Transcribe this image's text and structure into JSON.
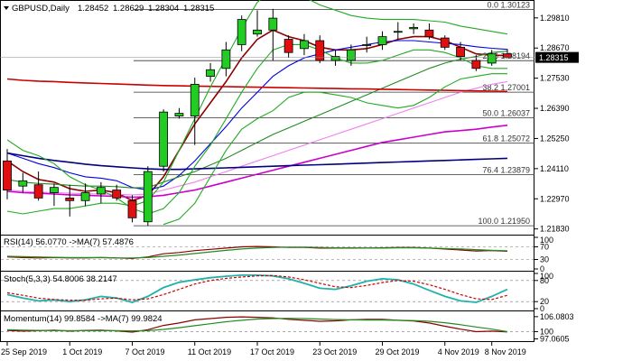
{
  "chart_data": [
    {
      "type": "candlestick",
      "title": "GBPUSD,Daily",
      "ohlc_header": [
        "1.28452",
        "1.28629",
        "1.28304",
        "1.28315"
      ],
      "ylim": [
        1.2175,
        1.3035
      ],
      "y_ticks": [
        "1.29810",
        "1.28670",
        "1.27530",
        "1.26390",
        "1.25250",
        "1.24110",
        "1.22970",
        "1.21830"
      ],
      "y_tick_values": [
        1.2981,
        1.2867,
        1.2753,
        1.2639,
        1.2525,
        1.2411,
        1.2297,
        1.2183
      ],
      "current_price": "1.28315",
      "x_ticks": [
        "25 Sep 2019",
        "1 Oct 2019",
        "7 Oct 2019",
        "11 Oct 2019",
        "17 Oct 2019",
        "23 Oct 2019",
        "29 Oct 2019",
        "4 Nov 2019",
        "8 Nov 2019"
      ],
      "x_tick_bars": [
        0,
        4,
        8,
        12,
        16,
        20,
        24,
        28,
        31
      ],
      "candles": [
        {
          "o": 1.244,
          "h": 1.2485,
          "l": 1.2295,
          "c": 1.233
        },
        {
          "o": 1.2345,
          "h": 1.2395,
          "l": 1.232,
          "c": 1.2365
        },
        {
          "o": 1.235,
          "h": 1.24,
          "l": 1.229,
          "c": 1.23
        },
        {
          "o": 1.232,
          "h": 1.2355,
          "l": 1.227,
          "c": 1.234
        },
        {
          "o": 1.23,
          "h": 1.235,
          "l": 1.223,
          "c": 1.229
        },
        {
          "o": 1.229,
          "h": 1.2355,
          "l": 1.227,
          "c": 1.232
        },
        {
          "o": 1.2315,
          "h": 1.236,
          "l": 1.228,
          "c": 1.234
        },
        {
          "o": 1.233,
          "h": 1.235,
          "l": 1.229,
          "c": 1.23
        },
        {
          "o": 1.229,
          "h": 1.231,
          "l": 1.2208,
          "c": 1.2225
        },
        {
          "o": 1.221,
          "h": 1.242,
          "l": 1.2195,
          "c": 1.24
        },
        {
          "o": 1.242,
          "h": 1.2635,
          "l": 1.24,
          "c": 1.2625
        },
        {
          "o": 1.261,
          "h": 1.264,
          "l": 1.26,
          "c": 1.262
        },
        {
          "o": 1.261,
          "h": 1.2755,
          "l": 1.25,
          "c": 1.273
        },
        {
          "o": 1.276,
          "h": 1.281,
          "l": 1.274,
          "c": 1.2785
        },
        {
          "o": 1.279,
          "h": 1.289,
          "l": 1.276,
          "c": 1.286
        },
        {
          "o": 1.288,
          "h": 1.299,
          "l": 1.2855,
          "c": 1.2975
        },
        {
          "o": 1.292,
          "h": 1.301,
          "l": 1.291,
          "c": 1.2935
        },
        {
          "o": 1.2935,
          "h": 1.3015,
          "l": 1.282,
          "c": 1.298
        },
        {
          "o": 1.29,
          "h": 1.2915,
          "l": 1.283,
          "c": 1.285
        },
        {
          "o": 1.2865,
          "h": 1.292,
          "l": 1.284,
          "c": 1.2895
        },
        {
          "o": 1.2895,
          "h": 1.2915,
          "l": 1.281,
          "c": 1.282
        },
        {
          "o": 1.282,
          "h": 1.286,
          "l": 1.28,
          "c": 1.2835
        },
        {
          "o": 1.282,
          "h": 1.288,
          "l": 1.28,
          "c": 1.286
        },
        {
          "o": 1.288,
          "h": 1.291,
          "l": 1.285,
          "c": 1.288
        },
        {
          "o": 1.288,
          "h": 1.293,
          "l": 1.286,
          "c": 1.291
        },
        {
          "o": 1.293,
          "h": 1.2965,
          "l": 1.29,
          "c": 1.293
        },
        {
          "o": 1.294,
          "h": 1.296,
          "l": 1.292,
          "c": 1.2945
        },
        {
          "o": 1.2935,
          "h": 1.296,
          "l": 1.29,
          "c": 1.291
        },
        {
          "o": 1.2905,
          "h": 1.2915,
          "l": 1.286,
          "c": 1.287
        },
        {
          "o": 1.287,
          "h": 1.289,
          "l": 1.282,
          "c": 1.2835
        },
        {
          "o": 1.282,
          "h": 1.284,
          "l": 1.278,
          "c": 1.279
        },
        {
          "o": 1.281,
          "h": 1.286,
          "l": 1.28,
          "c": 1.2845
        },
        {
          "o": 1.2845,
          "h": 1.2863,
          "l": 1.283,
          "c": 1.2832
        }
      ],
      "fibonacci_levels": [
        {
          "label": "0.0 1.30123",
          "value": 1.30123
        },
        {
          "label": "23.6 1.28194",
          "value": 1.28194
        },
        {
          "label": "38.2 1.27001",
          "value": 1.27001
        },
        {
          "label": "50.0 1.26037",
          "value": 1.26037
        },
        {
          "label": "61.8 1.25072",
          "value": 1.25072
        },
        {
          "label": "76.4 1.23879",
          "value": 1.23879
        },
        {
          "label": "100.0 1.21950",
          "value": 1.2195
        }
      ],
      "overlay_lines": [
        {
          "color": "#8b0000",
          "values": [
            1.244,
            1.24,
            1.237,
            1.236,
            1.2335,
            1.2325,
            1.233,
            1.232,
            1.229,
            1.231,
            1.238,
            1.248,
            1.258,
            1.266,
            1.274,
            1.283,
            1.29,
            1.2935,
            1.291,
            1.2895,
            1.287,
            1.286,
            1.286,
            1.2865,
            1.288,
            1.29,
            1.291,
            1.291,
            1.2895,
            1.287,
            1.2845,
            1.284,
            1.2838
          ]
        },
        {
          "color": "#0000e0",
          "values": [
            1.247,
            1.245,
            1.243,
            1.2415,
            1.2395,
            1.238,
            1.2375,
            1.2365,
            1.234,
            1.233,
            1.2345,
            1.2385,
            1.244,
            1.2505,
            1.257,
            1.264,
            1.27,
            1.276,
            1.28,
            1.283,
            1.2845,
            1.286,
            1.287,
            1.288,
            1.289,
            1.2895,
            1.2895,
            1.289,
            1.2885,
            1.288,
            1.2872,
            1.2866,
            1.2862
          ]
        },
        {
          "color": "#228b22",
          "values": [
            1.237,
            1.236,
            1.2355,
            1.2352,
            1.2348,
            1.2345,
            1.2345,
            1.2343,
            1.2338,
            1.234,
            1.236,
            1.238,
            1.24,
            1.2425,
            1.245,
            1.248,
            1.251,
            1.254,
            1.2565,
            1.259,
            1.2615,
            1.264,
            1.2665,
            1.269,
            1.2715,
            1.274,
            1.2765,
            1.279,
            1.281,
            1.2825,
            1.2835,
            1.285,
            1.2855
          ]
        },
        {
          "color": "#ee82ee",
          "values": [
            1.233,
            1.2325,
            1.2322,
            1.232,
            1.2318,
            1.2316,
            1.2315,
            1.2314,
            1.2312,
            1.2315,
            1.233,
            1.2345,
            1.236,
            1.238,
            1.24,
            1.242,
            1.244,
            1.246,
            1.248,
            1.25,
            1.252,
            1.254,
            1.256,
            1.258,
            1.26,
            1.262,
            1.264,
            1.266,
            1.268,
            1.27,
            1.2715,
            1.273,
            1.274
          ]
        },
        {
          "color": "#cc00cc",
          "values": [
            1.2325,
            1.232,
            1.2318,
            1.2315,
            1.2312,
            1.231,
            1.2308,
            1.2306,
            1.2303,
            1.2305,
            1.231,
            1.232,
            1.233,
            1.2345,
            1.236,
            1.2375,
            1.239,
            1.2405,
            1.242,
            1.2435,
            1.245,
            1.2465,
            1.248,
            1.2495,
            1.251,
            1.252,
            1.253,
            1.254,
            1.255,
            1.2555,
            1.256,
            1.2568,
            1.2575
          ]
        },
        {
          "color": "#000080",
          "values": [
            1.247,
            1.246,
            1.245,
            1.2442,
            1.2435,
            1.2428,
            1.2422,
            1.2418,
            1.2414,
            1.241,
            1.2408,
            1.2408,
            1.241,
            1.2412,
            1.2414,
            1.2416,
            1.2418,
            1.242,
            1.2422,
            1.2424,
            1.2426,
            1.2428,
            1.243,
            1.2432,
            1.2434,
            1.2436,
            1.2438,
            1.244,
            1.2442,
            1.2444,
            1.2446,
            1.2448,
            1.245
          ]
        },
        {
          "color": "#cc0000",
          "values": [
            1.275,
            1.2745,
            1.2742,
            1.274,
            1.2737,
            1.2735,
            1.2733,
            1.2731,
            1.2729,
            1.2727,
            1.2725,
            1.2724,
            1.2723,
            1.2722,
            1.2721,
            1.272,
            1.2719,
            1.2718,
            1.2717,
            1.2716,
            1.2715,
            1.2714,
            1.2713,
            1.2712,
            1.2711,
            1.271,
            1.2709,
            1.2708,
            1.2707,
            1.2706,
            1.2705,
            1.2704,
            1.2703
          ]
        },
        {
          "color": "#22aa22",
          "values": [
            1.252,
            1.248,
            1.246,
            1.243,
            1.238,
            1.235,
            1.233,
            1.23,
            1.226,
            1.224,
            1.226,
            1.232,
            1.242,
            1.25,
            1.26,
            1.27,
            1.279,
            1.286,
            1.288,
            1.288,
            1.286,
            1.283,
            1.281,
            1.281,
            1.282,
            1.284,
            1.286,
            1.286,
            1.285,
            1.283,
            1.28,
            1.279,
            1.279
          ]
        },
        {
          "color": "#22aa22",
          "values": [
            1.225,
            1.224,
            1.225,
            1.226,
            1.226,
            1.227,
            1.228,
            1.228,
            1.227,
            1.229,
            1.236,
            1.248,
            1.26,
            1.272,
            1.283,
            1.294,
            1.304,
            1.309,
            1.308,
            1.306,
            1.303,
            1.301,
            1.299,
            1.298,
            1.2975,
            1.2975,
            1.2975,
            1.297,
            1.2965,
            1.295,
            1.294,
            1.293,
            1.292
          ]
        },
        {
          "color": "#22aa22",
          "values": [
            null,
            null,
            null,
            null,
            null,
            null,
            null,
            null,
            null,
            null,
            1.22,
            1.222,
            1.228,
            1.238,
            1.248,
            1.256,
            1.26,
            1.263,
            1.268,
            1.27,
            1.27,
            1.269,
            1.268,
            1.266,
            1.265,
            1.264,
            1.265,
            1.268,
            1.272,
            1.275,
            1.276,
            1.277,
            1.277
          ]
        }
      ]
    },
    {
      "type": "line",
      "title": "RSI(14) 56.0770 ->MA(7) 57.4876",
      "ylim": [
        0,
        100
      ],
      "y_ticks": [
        "100",
        "70",
        "30",
        "0"
      ],
      "y_tick_values": [
        100,
        70,
        30,
        0
      ],
      "series": [
        {
          "color": "#8b0000",
          "values": [
            38,
            36,
            35,
            36,
            35,
            35,
            36,
            35,
            33,
            38,
            48,
            52,
            58,
            62,
            66,
            70,
            71,
            70,
            68,
            68,
            66,
            66,
            66,
            66,
            67,
            68,
            68,
            66,
            63,
            60,
            57,
            58,
            56
          ]
        },
        {
          "color": "#228b22",
          "values": [
            40,
            39,
            38,
            37,
            36,
            36,
            36,
            35,
            35,
            36,
            40,
            44,
            49,
            54,
            59,
            63,
            66,
            68,
            69,
            69,
            68,
            67,
            67,
            66,
            66,
            67,
            67,
            66,
            65,
            63,
            61,
            59,
            57.5
          ]
        }
      ]
    },
    {
      "type": "line",
      "title": "Stoch(5,3,3) 54.8006 38.2147",
      "ylim": [
        0,
        100
      ],
      "y_ticks": [
        "100",
        "80",
        "20",
        "0"
      ],
      "y_tick_values": [
        100,
        80,
        20,
        0
      ],
      "series": [
        {
          "color": "#20b2aa",
          "values": [
            40,
            30,
            22,
            25,
            20,
            25,
            35,
            30,
            18,
            35,
            60,
            75,
            82,
            88,
            92,
            95,
            95,
            93,
            85,
            72,
            58,
            55,
            65,
            78,
            85,
            82,
            70,
            52,
            35,
            22,
            18,
            35,
            55
          ]
        },
        {
          "color": "#cc0000",
          "values": [
            45,
            38,
            30,
            26,
            24,
            24,
            28,
            30,
            25,
            28,
            40,
            55,
            70,
            80,
            86,
            90,
            93,
            94,
            90,
            82,
            72,
            62,
            60,
            66,
            74,
            80,
            78,
            68,
            55,
            40,
            28,
            26,
            38
          ]
        }
      ]
    },
    {
      "type": "line",
      "title": "Momentum(14) 99.8584 ->MA(7) 99.9824",
      "ylim": [
        96.5,
        107.5
      ],
      "y_ticks": [
        "106.0803",
        "100",
        "97.0605"
      ],
      "y_tick_values": [
        106.0803,
        100,
        97.0605
      ],
      "series": [
        {
          "color": "#8b0000",
          "values": [
            100.5,
            100.2,
            100.4,
            100.6,
            100.2,
            100.5,
            100.6,
            100.3,
            99.8,
            100.8,
            102.5,
            103.5,
            104.8,
            105.3,
            105.8,
            106.0,
            105.8,
            105.6,
            105.0,
            104.6,
            104.2,
            104.4,
            104.8,
            105.0,
            105.0,
            104.6,
            104.3,
            103.5,
            102.2,
            101.0,
            100.0,
            100.2,
            99.86
          ]
        },
        {
          "color": "#228b22",
          "values": [
            100.8,
            100.6,
            100.5,
            100.4,
            100.4,
            100.4,
            100.4,
            100.4,
            100.3,
            100.4,
            100.9,
            101.6,
            102.4,
            103.2,
            104.0,
            104.6,
            105.1,
            105.3,
            105.4,
            105.3,
            105.1,
            104.9,
            104.8,
            104.7,
            104.7,
            104.6,
            104.5,
            104.2,
            103.6,
            102.8,
            101.9,
            101.0,
            99.98
          ]
        }
      ]
    }
  ]
}
